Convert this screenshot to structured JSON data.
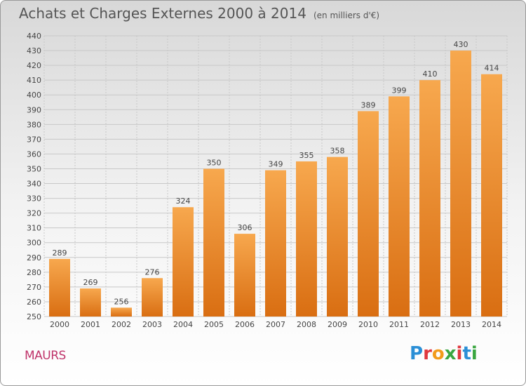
{
  "header": {
    "title": "Achats et Charges Externes 2000 à 2014",
    "unit": "(en milliers d'€)"
  },
  "footer": {
    "city": "MAURS",
    "brand": "Proxiti"
  },
  "colors": {
    "bar_light": "#f7a84e",
    "bar_dark": "#d96e12",
    "grid": "#c8c8c8",
    "title": "#555555",
    "city": "#c0356b",
    "logo_letters": [
      "#2b8fd6",
      "#e0383e",
      "#f29b1b",
      "#3aa640",
      "#e0383e",
      "#2b8fd6",
      "#3aa640"
    ]
  },
  "chart_data": {
    "type": "bar",
    "title": "Achats et Charges Externes 2000 à 2014",
    "subtitle": "(en milliers d'€)",
    "categories": [
      "2000",
      "2001",
      "2002",
      "2003",
      "2004",
      "2005",
      "2006",
      "2007",
      "2008",
      "2009",
      "2010",
      "2011",
      "2012",
      "2013",
      "2014"
    ],
    "values": [
      289,
      269,
      256,
      276,
      324,
      350,
      306,
      349,
      355,
      358,
      389,
      399,
      410,
      430,
      414
    ],
    "ylim": [
      250,
      440
    ],
    "yticks": [
      250,
      260,
      270,
      280,
      290,
      300,
      310,
      320,
      330,
      340,
      350,
      360,
      370,
      380,
      390,
      400,
      410,
      420,
      430,
      440
    ],
    "grid": true,
    "data_labels": true
  }
}
